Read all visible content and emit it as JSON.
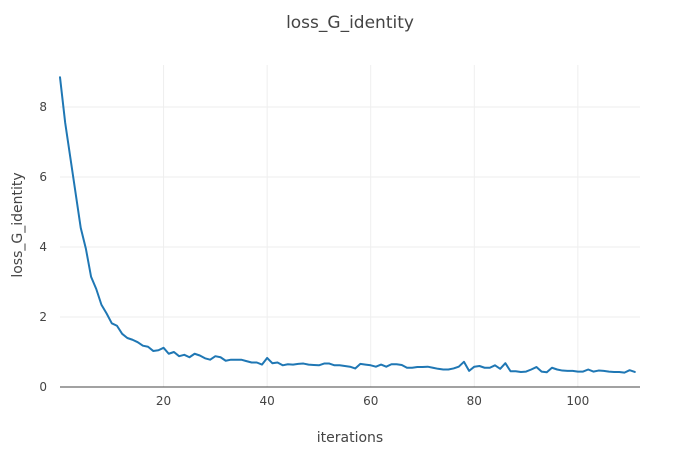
{
  "chart_data": {
    "type": "line",
    "title": "loss_G_identity",
    "xlabel": "iterations",
    "ylabel": "loss_G_identity",
    "xlim": [
      0,
      112
    ],
    "ylim": [
      0,
      9.2
    ],
    "xticks": [
      20,
      40,
      60,
      80,
      100
    ],
    "yticks": [
      0,
      2,
      4,
      6,
      8
    ],
    "grid": true,
    "series": [
      {
        "color": "#1f77b4",
        "x": [
          0,
          1,
          2,
          3,
          4,
          5,
          6,
          7,
          8,
          9,
          10,
          11,
          12,
          13,
          14,
          15,
          16,
          17,
          18,
          19,
          20,
          21,
          22,
          23,
          24,
          25,
          26,
          27,
          28,
          29,
          30,
          31,
          32,
          33,
          34,
          35,
          36,
          37,
          38,
          39,
          40,
          41,
          42,
          43,
          44,
          45,
          46,
          47,
          48,
          49,
          50,
          51,
          52,
          53,
          54,
          55,
          56,
          57,
          58,
          59,
          60,
          61,
          62,
          63,
          64,
          65,
          66,
          67,
          68,
          69,
          70,
          71,
          72,
          73,
          74,
          75,
          76,
          77,
          78,
          79,
          80,
          81,
          82,
          83,
          84,
          85,
          86,
          87,
          88,
          89,
          90,
          91,
          92,
          93,
          94,
          95,
          96,
          97,
          98,
          99,
          100,
          101,
          102,
          103,
          104,
          105,
          106,
          107,
          108,
          109,
          110,
          111
        ],
        "y": [
          8.85,
          7.55,
          6.55,
          5.55,
          4.55,
          3.95,
          3.15,
          2.8,
          2.35,
          2.1,
          1.82,
          1.75,
          1.52,
          1.4,
          1.35,
          1.28,
          1.18,
          1.15,
          1.03,
          1.05,
          1.12,
          0.95,
          1.0,
          0.88,
          0.92,
          0.85,
          0.95,
          0.9,
          0.82,
          0.78,
          0.88,
          0.85,
          0.75,
          0.78,
          0.78,
          0.78,
          0.74,
          0.7,
          0.7,
          0.64,
          0.83,
          0.68,
          0.7,
          0.62,
          0.65,
          0.64,
          0.66,
          0.67,
          0.64,
          0.63,
          0.62,
          0.67,
          0.67,
          0.62,
          0.62,
          0.6,
          0.58,
          0.53,
          0.66,
          0.64,
          0.62,
          0.58,
          0.64,
          0.58,
          0.65,
          0.65,
          0.63,
          0.55,
          0.55,
          0.57,
          0.57,
          0.58,
          0.55,
          0.52,
          0.5,
          0.5,
          0.53,
          0.58,
          0.72,
          0.46,
          0.58,
          0.6,
          0.55,
          0.55,
          0.62,
          0.52,
          0.68,
          0.45,
          0.45,
          0.43,
          0.44,
          0.5,
          0.57,
          0.44,
          0.42,
          0.55,
          0.5,
          0.47,
          0.46,
          0.46,
          0.44,
          0.44,
          0.5,
          0.44,
          0.47,
          0.46,
          0.44,
          0.43,
          0.43,
          0.41,
          0.48,
          0.43
        ]
      }
    ]
  }
}
